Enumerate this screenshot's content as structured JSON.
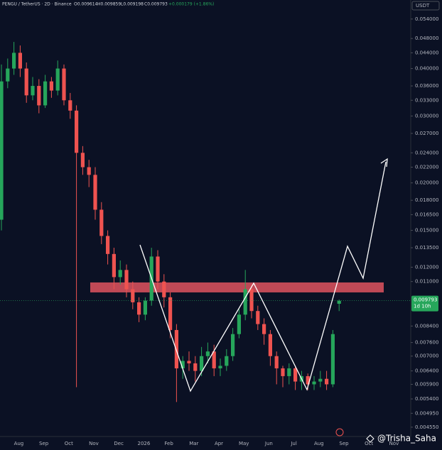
{
  "header": {
    "symbol": "PENGU / TetherUS · 2D · Binance",
    "open": "O0.009614",
    "high": "H0.009859",
    "low": "L0.009198",
    "close": "C0.009793",
    "change": "+0.000179 (+1.86%)",
    "currency": "USDT",
    "countdown": "1d 10h",
    "watermark": "@Trisha_Saha"
  },
  "chart_data": {
    "type": "candlestick",
    "categories": [
      null,
      null,
      null,
      "Aug",
      null,
      null,
      null,
      "Sep",
      null,
      null,
      null,
      "Oct",
      null,
      null,
      null,
      "Nov",
      null,
      null,
      null,
      "Dec",
      null,
      null,
      null,
      "2026",
      null,
      null,
      null,
      "Feb",
      null,
      null,
      null,
      "Mar",
      null,
      null,
      null,
      "Apr",
      null,
      null,
      null,
      "May",
      null,
      null,
      null,
      "Jun",
      null,
      null,
      null,
      "Jul",
      null,
      null,
      null,
      "Aug",
      null,
      null,
      null,
      "Sep",
      null,
      null,
      null,
      "Oct",
      null,
      null,
      null,
      "Nov",
      null,
      null
    ],
    "series": {
      "open": [
        0.016,
        0.037,
        0.04,
        0.044,
        0.04,
        0.034,
        0.036,
        0.032,
        0.037,
        0.035,
        0.04,
        0.033,
        0.031,
        0.024,
        0.022,
        0.021,
        0.017,
        0.0145,
        0.013,
        0.0113,
        0.0118,
        0.0105,
        0.0097,
        0.009,
        0.0098,
        0.0128,
        0.011,
        0.01,
        0.0082,
        0.0065,
        0.0068,
        0.0067,
        0.0064,
        0.007,
        0.0072,
        0.0065,
        0.0066,
        0.007,
        0.008,
        0.009,
        0.0105,
        0.0092,
        0.0085,
        0.008,
        0.007,
        0.0065,
        0.0062,
        0.0065,
        0.006,
        0.0062,
        0.0059,
        0.006,
        0.0061,
        0.0059,
        0.009614,
        null,
        null,
        null,
        null,
        null,
        null,
        null,
        null,
        null,
        null,
        null
      ],
      "high": [
        0.041,
        0.0425,
        0.047,
        0.046,
        0.0415,
        0.038,
        0.0375,
        0.0385,
        0.038,
        0.042,
        0.041,
        0.0345,
        0.032,
        0.025,
        0.023,
        0.022,
        0.0178,
        0.015,
        0.0135,
        0.0125,
        0.0122,
        0.011,
        0.01,
        0.01,
        0.0135,
        0.0133,
        0.0115,
        0.0103,
        0.0085,
        0.007,
        0.0072,
        0.007,
        0.0074,
        0.0076,
        0.0075,
        0.0069,
        0.0073,
        0.0083,
        0.0093,
        0.0118,
        0.0108,
        0.0095,
        0.0088,
        0.0082,
        0.0072,
        0.0066,
        0.0067,
        0.0066,
        0.0064,
        0.0063,
        0.0062,
        0.0064,
        0.0064,
        0.0082,
        0.009859,
        null,
        null,
        null,
        null,
        null,
        null,
        null,
        null,
        null,
        null,
        null
      ],
      "low": [
        0.015,
        0.0355,
        0.0385,
        0.038,
        0.0325,
        0.033,
        0.0305,
        0.0315,
        0.0335,
        0.034,
        0.032,
        0.0295,
        0.0058,
        0.021,
        0.0195,
        0.016,
        0.0138,
        0.0122,
        0.0105,
        0.0108,
        0.01,
        0.0093,
        0.0086,
        0.0087,
        0.0095,
        0.0105,
        0.0094,
        0.0078,
        0.0053,
        0.0061,
        0.0064,
        0.006,
        0.0062,
        0.0067,
        0.0062,
        0.0062,
        0.0064,
        0.0068,
        0.0078,
        0.0087,
        0.0088,
        0.0082,
        0.0075,
        0.0066,
        0.0059,
        0.0058,
        0.0059,
        0.0057,
        0.0057,
        0.0057,
        0.0057,
        0.0058,
        0.0057,
        0.0058,
        0.009198,
        null,
        null,
        null,
        null,
        null,
        null,
        null,
        null,
        null,
        null,
        null
      ],
      "close": [
        0.037,
        0.04,
        0.044,
        0.04,
        0.034,
        0.036,
        0.032,
        0.037,
        0.035,
        0.04,
        0.033,
        0.031,
        0.024,
        0.022,
        0.021,
        0.017,
        0.0145,
        0.013,
        0.0113,
        0.0118,
        0.0105,
        0.0097,
        0.009,
        0.0098,
        0.0128,
        0.011,
        0.01,
        0.0082,
        0.0065,
        0.0068,
        0.0067,
        0.0064,
        0.007,
        0.0072,
        0.0065,
        0.0066,
        0.007,
        0.008,
        0.009,
        0.0105,
        0.0092,
        0.0085,
        0.008,
        0.007,
        0.0065,
        0.0062,
        0.0065,
        0.006,
        0.0062,
        0.0059,
        0.006,
        0.0061,
        0.0059,
        0.008,
        0.009793,
        null,
        null,
        null,
        null,
        null,
        null,
        null,
        null,
        null,
        null,
        null
      ]
    },
    "up_color": "#26a65b",
    "down_color": "#ef5350",
    "zone": [
      0.0103,
      0.01094
    ],
    "zone_color": "#e0545f",
    "log_scale": true,
    "ylim": [
      0.0043,
      0.0606
    ],
    "yticks": [
      {
        "value": 0.054,
        "label": "0.054000"
      },
      {
        "value": 0.048,
        "label": "0.048000"
      },
      {
        "value": 0.044,
        "label": "0.044000"
      },
      {
        "value": 0.04,
        "label": "0.040000"
      },
      {
        "value": 0.036,
        "label": "0.036000"
      },
      {
        "value": 0.033,
        "label": "0.033000"
      },
      {
        "value": 0.03,
        "label": "0.030000"
      },
      {
        "value": 0.027,
        "label": "0.027000"
      },
      {
        "value": 0.024,
        "label": "0.024000"
      },
      {
        "value": 0.022,
        "label": "0.022000"
      },
      {
        "value": 0.02,
        "label": "0.020000"
      },
      {
        "value": 0.018,
        "label": "0.018000"
      },
      {
        "value": 0.0165,
        "label": "0.016500"
      },
      {
        "value": 0.015,
        "label": "0.015000"
      },
      {
        "value": 0.0135,
        "label": "0.013500"
      },
      {
        "value": 0.012,
        "label": "0.012000"
      },
      {
        "value": 0.011,
        "label": "0.011000"
      },
      {
        "value": 0.0084,
        "label": "0.008400"
      },
      {
        "value": 0.0076,
        "label": "0.007600"
      },
      {
        "value": 0.007,
        "label": "0.007000"
      },
      {
        "value": 0.0064,
        "label": "0.006400"
      },
      {
        "value": 0.0059,
        "label": "0.005900"
      },
      {
        "value": 0.0054,
        "label": "0.005400"
      },
      {
        "value": 0.00495,
        "label": "0.004950"
      },
      {
        "value": 0.00455,
        "label": "0.004550"
      }
    ]
  }
}
